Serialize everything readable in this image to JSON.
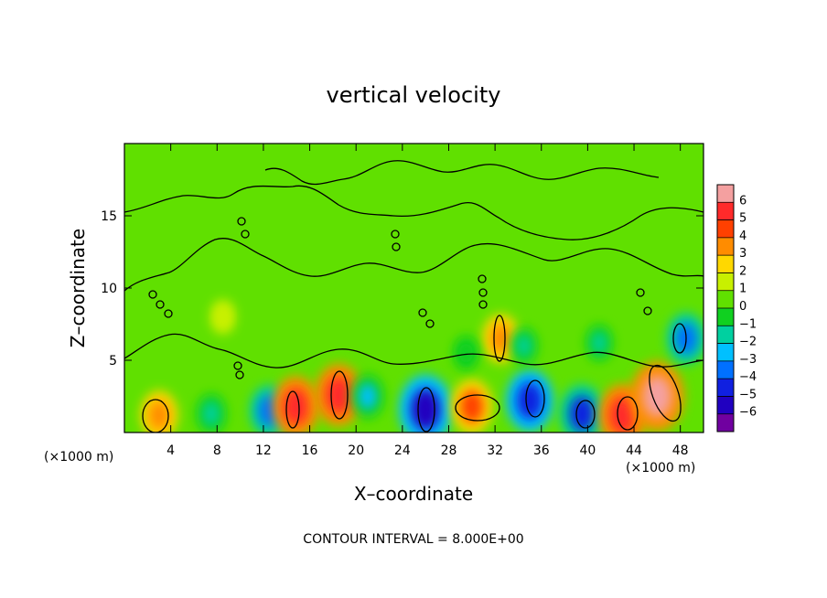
{
  "chart_data": {
    "type": "heatmap",
    "title": "vertical velocity",
    "xlabel": "X–coordinate",
    "ylabel": "Z–coordinate",
    "x_unit": "(×1000 m)",
    "y_unit": "(×1000 m)",
    "xlim": [
      0,
      50
    ],
    "ylim": [
      0,
      20
    ],
    "x_ticks": [
      4,
      8,
      12,
      16,
      20,
      24,
      28,
      32,
      36,
      40,
      44,
      48
    ],
    "y_ticks": [
      5,
      10,
      15
    ],
    "colorbar": {
      "levels": [
        "6",
        "5",
        "4",
        "3",
        "2",
        "1",
        "0",
        "−1",
        "−2",
        "−3",
        "−4",
        "−5",
        "−6"
      ],
      "colors": [
        "#f4a0a0",
        "#ff2a2a",
        "#ff4000",
        "#ff8c00",
        "#ffd800",
        "#c8f000",
        "#60e000",
        "#10d020",
        "#00d0a0",
        "#00c0ff",
        "#0070ff",
        "#1020e0",
        "#2000c0",
        "#7000a0"
      ]
    },
    "features": [
      {
        "x": 3.0,
        "z": 1.2,
        "value": 3.2
      },
      {
        "x": 7.5,
        "z": 1.3,
        "value": -2.0
      },
      {
        "x": 12.5,
        "z": 1.5,
        "value": -3.5
      },
      {
        "x": 14.8,
        "z": 1.8,
        "value": 4.8
      },
      {
        "x": 18.5,
        "z": 2.6,
        "value": 5.0
      },
      {
        "x": 21.0,
        "z": 2.5,
        "value": -2.5
      },
      {
        "x": 26.0,
        "z": 1.6,
        "value": -6.0
      },
      {
        "x": 30.0,
        "z": 1.8,
        "value": 4.0
      },
      {
        "x": 35.0,
        "z": 2.2,
        "value": -5.0
      },
      {
        "x": 39.5,
        "z": 1.3,
        "value": -4.5
      },
      {
        "x": 43.0,
        "z": 1.2,
        "value": 5.0
      },
      {
        "x": 46.0,
        "z": 2.5,
        "value": 6.0
      },
      {
        "x": 48.5,
        "z": 6.5,
        "value": -3.5
      },
      {
        "x": 32.5,
        "z": 6.5,
        "value": 3.2
      },
      {
        "x": 34.5,
        "z": 6.0,
        "value": -1.5
      },
      {
        "x": 41.0,
        "z": 6.2,
        "value": -1.5
      },
      {
        "x": 29.5,
        "z": 5.5,
        "value": -1.2
      },
      {
        "x": 8.5,
        "z": 8.0,
        "value": 1.2
      }
    ]
  },
  "footer": {
    "contour_interval": "CONTOUR INTERVAL = 8.000E+00"
  }
}
